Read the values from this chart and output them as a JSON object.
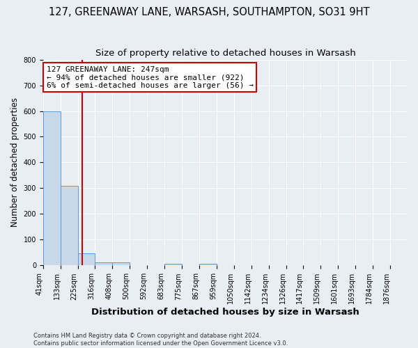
{
  "title": "127, GREENAWAY LANE, WARSASH, SOUTHAMPTON, SO31 9HT",
  "subtitle": "Size of property relative to detached houses in Warsash",
  "xlabel": "Distribution of detached houses by size in Warsash",
  "ylabel": "Number of detached properties",
  "bar_values": [
    600,
    310,
    48,
    12,
    12,
    0,
    0,
    5,
    0,
    5,
    0,
    0,
    0,
    0,
    0,
    0,
    0,
    0,
    0,
    0
  ],
  "bar_labels": [
    "41sqm",
    "133sqm",
    "225sqm",
    "316sqm",
    "408sqm",
    "500sqm",
    "592sqm",
    "683sqm",
    "775sqm",
    "867sqm",
    "959sqm",
    "1050sqm",
    "1142sqm",
    "1234sqm",
    "1326sqm",
    "1417sqm",
    "1509sqm",
    "1601sqm",
    "1693sqm",
    "1784sqm",
    "1876sqm"
  ],
  "bar_color": "#c8d8e8",
  "bar_edge_color": "#5b9bd5",
  "ylim": [
    0,
    800
  ],
  "property_sqm": 247,
  "bin_edges": [
    41,
    133,
    225,
    316,
    408,
    500,
    592,
    683,
    775,
    867,
    959,
    1050,
    1142,
    1234,
    1326,
    1417,
    1509,
    1601,
    1693,
    1784,
    1876
  ],
  "annotation_line1": "127 GREENAWAY LANE: 247sqm",
  "annotation_line2": "← 94% of detached houses are smaller (922)",
  "annotation_line3": "6% of semi-detached houses are larger (56) →",
  "annotation_box_facecolor": "#ffffff",
  "annotation_box_edgecolor": "#cc0000",
  "red_line_color": "#cc0000",
  "background_color": "#e8eef4",
  "grid_color": "#ffffff",
  "title_fontsize": 10.5,
  "subtitle_fontsize": 9.5,
  "ylabel_fontsize": 8.5,
  "xlabel_fontsize": 9.5,
  "tick_fontsize": 7,
  "annotation_fontsize": 8,
  "footer_line1": "Contains HM Land Registry data © Crown copyright and database right 2024.",
  "footer_line2": "Contains public sector information licensed under the Open Government Licence v3.0."
}
